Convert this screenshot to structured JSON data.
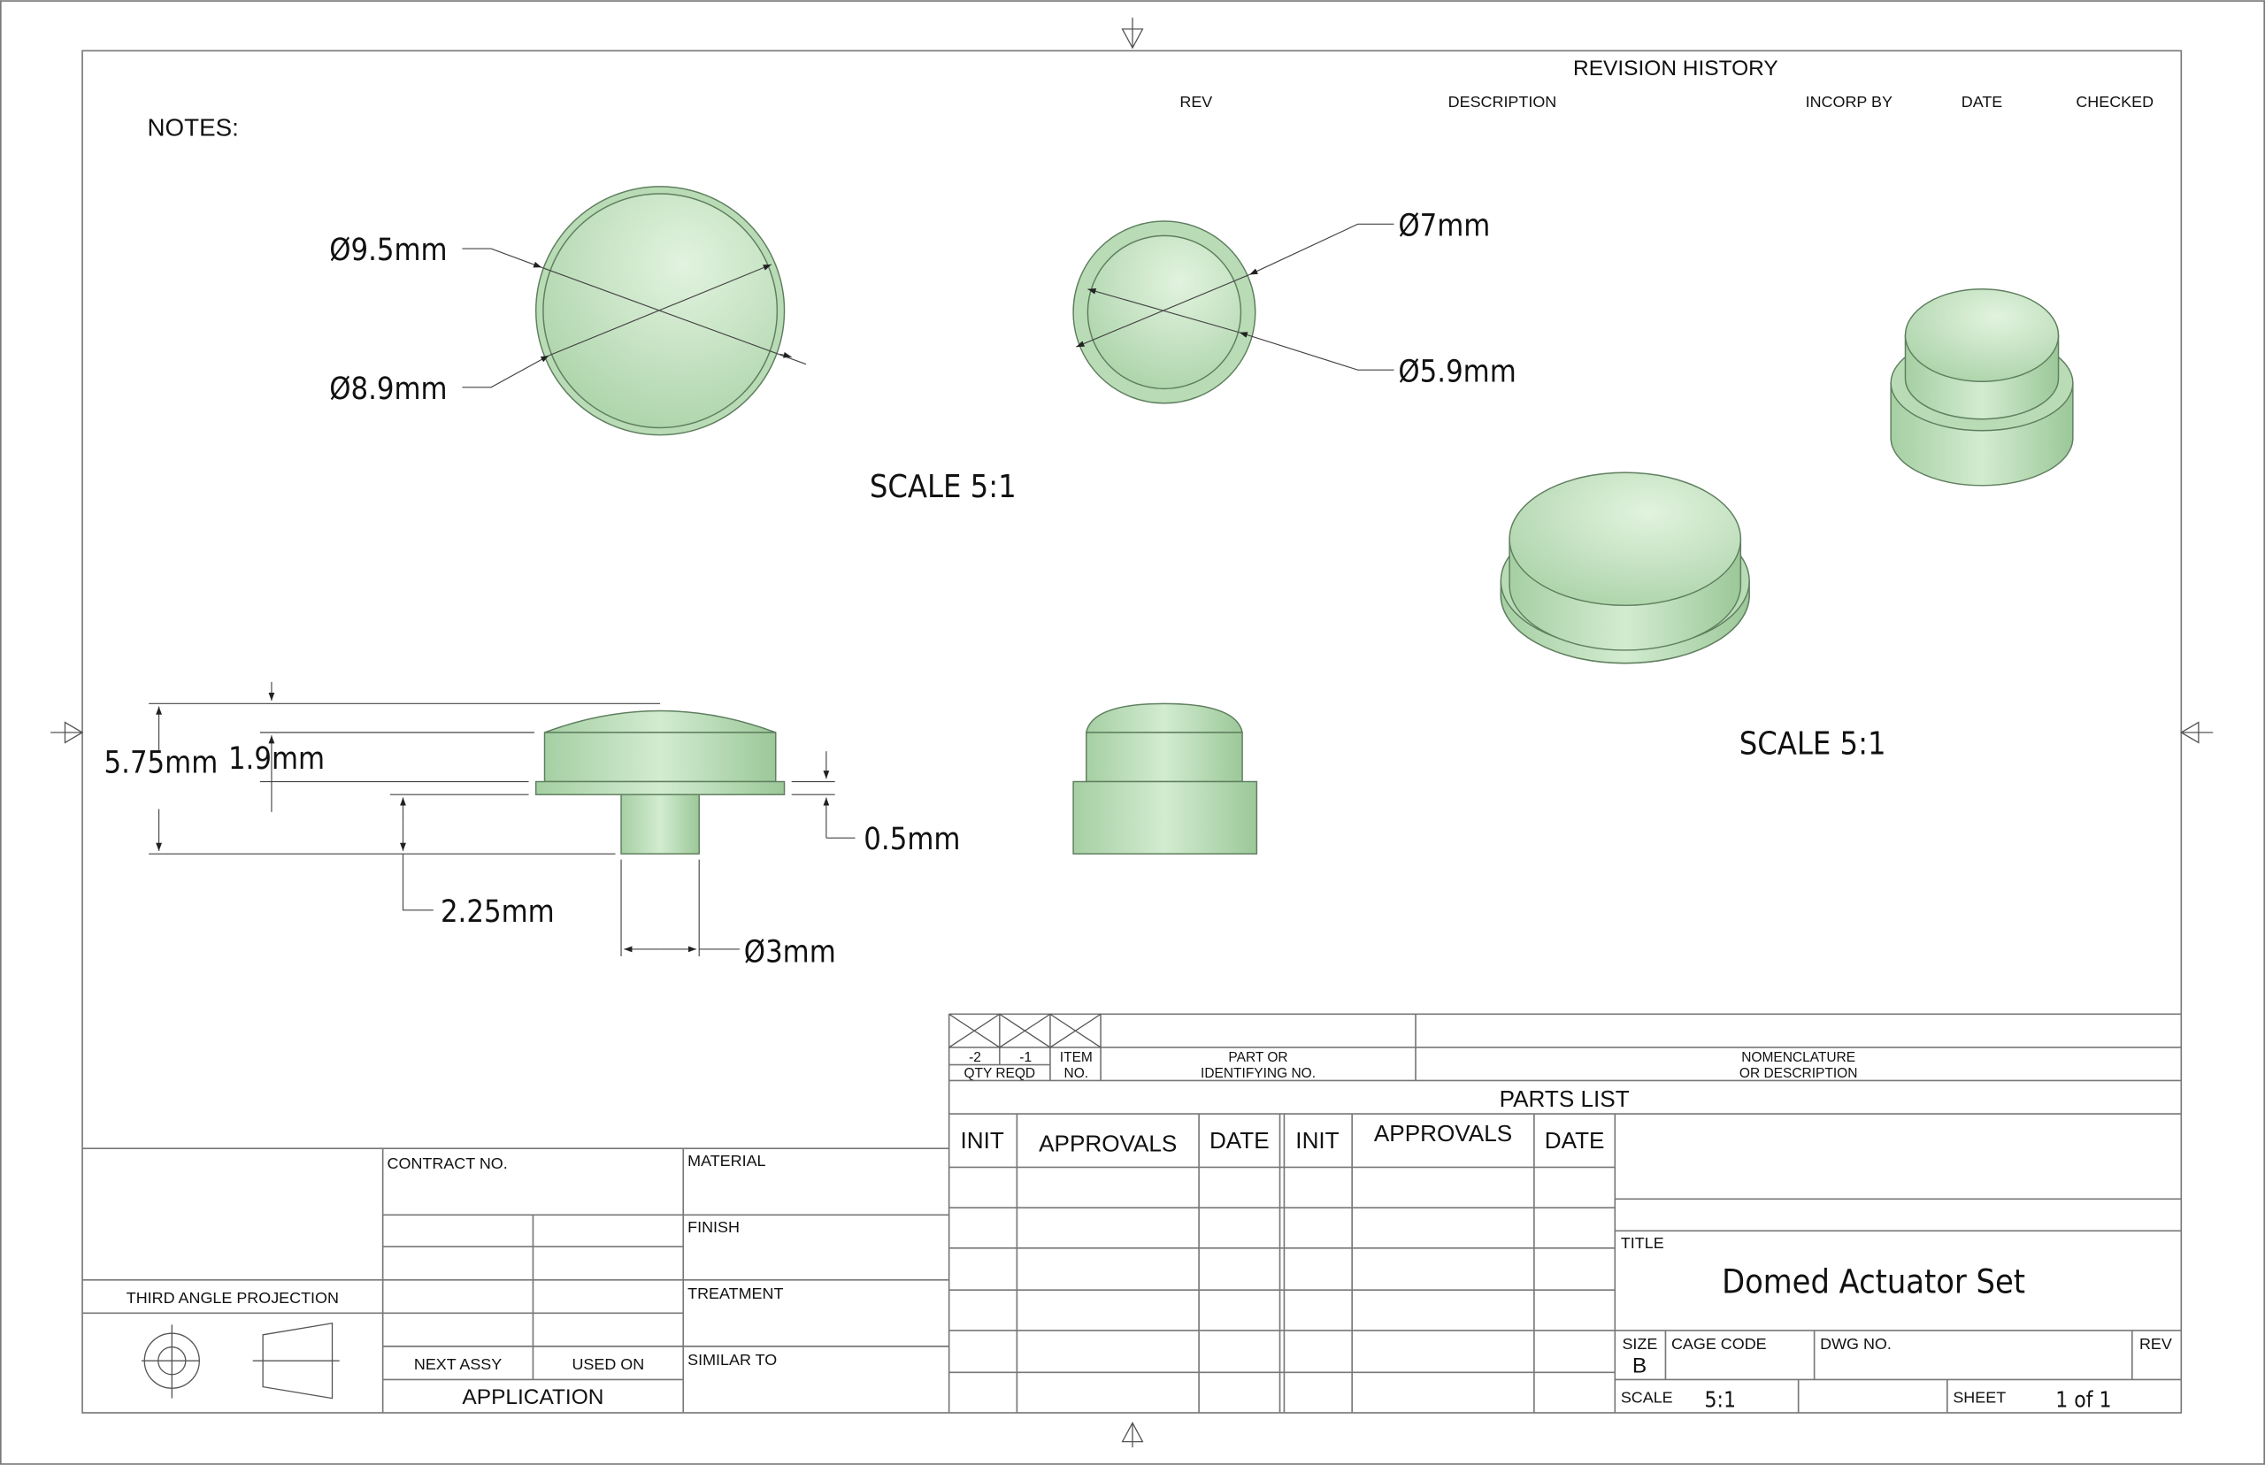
{
  "revision": {
    "title": "REVISION HISTORY",
    "columns": [
      "REV",
      "DESCRIPTION",
      "INCORP BY",
      "DATE",
      "CHECKED"
    ]
  },
  "notes_label": "NOTES:",
  "dimensions": {
    "outer_dia": "Ø9.5mm",
    "inner_dia": "Ø8.9mm",
    "small_outer_dia": "Ø7mm",
    "small_inner_dia": "Ø5.9mm",
    "total_height": "5.75mm",
    "dome_height": "1.9mm",
    "flange_thickness": "0.5mm",
    "stem_height": "2.25mm",
    "stem_dia": "Ø3mm"
  },
  "view_scales": [
    "SCALE 5:1",
    "SCALE 5:1"
  ],
  "colors": {
    "part_fill": "#b9dcb6",
    "part_stroke": "#5f7f5f"
  },
  "parts_list": {
    "qty": [
      "-2",
      "-1"
    ],
    "qty_label": "QTY  REQD",
    "item_label": [
      "ITEM",
      "NO."
    ],
    "part_label": [
      "PART  OR",
      "IDENTIFYING NO."
    ],
    "nomenclature_label": [
      "NOMENCLATURE",
      "OR DESCRIPTION"
    ],
    "title": "PARTS LIST"
  },
  "approvals": {
    "headers": [
      "INIT",
      "APPROVALS",
      "DATE",
      "INIT",
      "APPROVALS",
      "DATE"
    ]
  },
  "left_block": {
    "contract_no": "CONTRACT NO.",
    "material": "MATERIAL",
    "finish": "FINISH",
    "treatment": "TREATMENT",
    "similar_to": "SIMILAR TO",
    "projection": "THIRD  ANGLE  PROJECTION",
    "next_assy": "NEXT ASSY",
    "used_on": "USED ON",
    "application": "APPLICATION"
  },
  "title_block": {
    "title_label": "TITLE",
    "title": "Domed Actuator Set",
    "size_label": "SIZE",
    "size": "B",
    "cage_code_label": "CAGE CODE",
    "dwg_no_label": "DWG NO.",
    "rev_label": "REV",
    "scale_label": "SCALE",
    "scale": "5:1",
    "sheet_label": "SHEET",
    "sheet": "1 of 1"
  }
}
